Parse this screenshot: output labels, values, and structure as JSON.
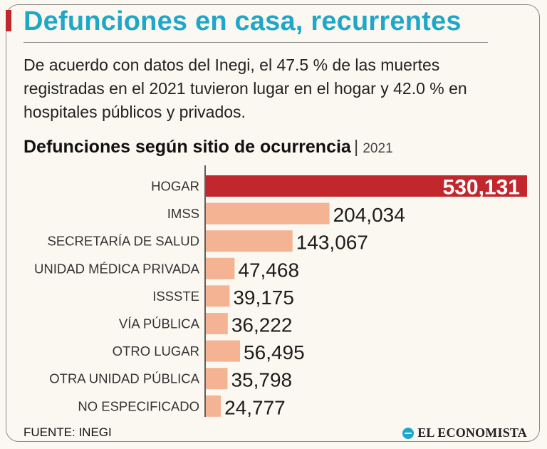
{
  "header": {
    "title": "Defunciones en casa, recurrentes",
    "description": "De acuerdo con datos del Inegi, el 47.5 % de las muertes registradas en el 2021 tuvieron lugar en el hogar y 42.0 % en hospitales públicos y privados."
  },
  "chart_heading": {
    "title": "Defunciones según sitio de ocurrencia",
    "separator": "|",
    "year": "2021"
  },
  "chart_data": {
    "type": "bar",
    "orientation": "horizontal",
    "title": "Defunciones según sitio de ocurrencia",
    "subtitle": "2021",
    "categories": [
      "HOGAR",
      "IMSS",
      "SECRETARÍA DE SALUD",
      "UNIDAD MÉDICA PRIVADA",
      "ISSSTE",
      "VÍA PÚBLICA",
      "OTRO LUGAR",
      "OTRA UNIDAD PÚBLICA",
      "NO ESPECIFICADO"
    ],
    "values": [
      530131,
      204034,
      143067,
      47468,
      39175,
      36222,
      56495,
      35798,
      24777
    ],
    "value_labels": [
      "530,131",
      "204,034",
      "143,067",
      "47,468",
      "39,175",
      "36,222",
      "56,495",
      "35,798",
      "24,777"
    ],
    "highlight_index": 0,
    "xlim": [
      0,
      530131
    ],
    "grid": false,
    "colors": {
      "highlight": "#c1272d",
      "default": "#f4b393",
      "axis": "#2a2a2a"
    }
  },
  "footer": {
    "source": "FUENTE: INEGI",
    "brand": "EL ECONOMISTA"
  }
}
